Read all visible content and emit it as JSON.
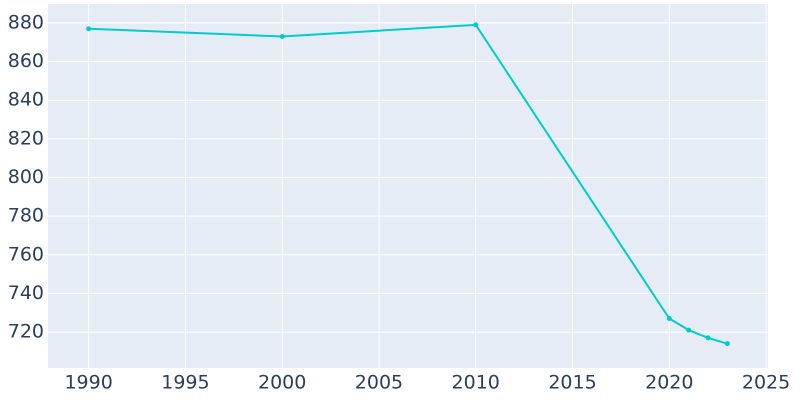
{
  "chart_data": {
    "type": "line",
    "x": [
      1990,
      2000,
      2010,
      2020,
      2021,
      2022,
      2023
    ],
    "series": [
      {
        "color": "#00cccc",
        "values": [
          877,
          873,
          879,
          727,
          721,
          717,
          714
        ]
      }
    ],
    "xlim": [
      1987.9,
      2025.1
    ],
    "xticks": [
      1990,
      1995,
      2000,
      2005,
      2010,
      2015,
      2020,
      2025
    ],
    "ylim": [
      701.4,
      889.8
    ],
    "yticks": [
      720,
      740,
      760,
      780,
      800,
      820,
      840,
      860,
      880
    ],
    "grid": true,
    "background": "#e5ecf6"
  }
}
